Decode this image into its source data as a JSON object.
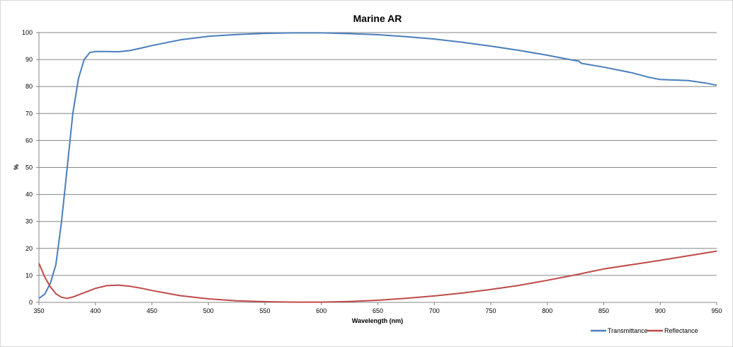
{
  "chart_data": {
    "type": "line",
    "title": "Marine AR",
    "xlabel": "Wavelength (nm)",
    "ylabel": "%",
    "xlim": [
      350,
      950
    ],
    "ylim": [
      0,
      100
    ],
    "x_ticks": [
      350,
      400,
      450,
      500,
      550,
      600,
      650,
      700,
      750,
      800,
      850,
      900,
      950
    ],
    "y_ticks": [
      0,
      10,
      20,
      30,
      40,
      50,
      60,
      70,
      80,
      90,
      100
    ],
    "grid": "horizontal",
    "legend_position": "bottom-right",
    "series": [
      {
        "name": "Transmittance",
        "color": "#4a7ebb",
        "points": [
          [
            350,
            1.5
          ],
          [
            355,
            3
          ],
          [
            360,
            7
          ],
          [
            365,
            14
          ],
          [
            370,
            30
          ],
          [
            375,
            50
          ],
          [
            380,
            70
          ],
          [
            385,
            83
          ],
          [
            390,
            90
          ],
          [
            395,
            92.6
          ],
          [
            400,
            93
          ],
          [
            410,
            93
          ],
          [
            420,
            92.9
          ],
          [
            430,
            93.3
          ],
          [
            440,
            94.2
          ],
          [
            450,
            95.2
          ],
          [
            475,
            97.3
          ],
          [
            500,
            98.6
          ],
          [
            525,
            99.3
          ],
          [
            550,
            99.7
          ],
          [
            575,
            99.9
          ],
          [
            600,
            99.9
          ],
          [
            625,
            99.6
          ],
          [
            650,
            99.2
          ],
          [
            675,
            98.5
          ],
          [
            700,
            97.6
          ],
          [
            725,
            96.4
          ],
          [
            750,
            95
          ],
          [
            775,
            93.4
          ],
          [
            800,
            91.6
          ],
          [
            820,
            90
          ],
          [
            828,
            89.4
          ],
          [
            830,
            88.6
          ],
          [
            850,
            87.2
          ],
          [
            875,
            85.1
          ],
          [
            890,
            83.4
          ],
          [
            900,
            82.6
          ],
          [
            925,
            82.2
          ],
          [
            940,
            81.3
          ],
          [
            950,
            80.5
          ]
        ]
      },
      {
        "name": "Reflectance",
        "color": "#be4b48",
        "points": [
          [
            350,
            14.5
          ],
          [
            355,
            9.5
          ],
          [
            360,
            5.8
          ],
          [
            365,
            3.2
          ],
          [
            370,
            1.9
          ],
          [
            375,
            1.5
          ],
          [
            380,
            2
          ],
          [
            390,
            3.6
          ],
          [
            400,
            5.2
          ],
          [
            410,
            6.2
          ],
          [
            420,
            6.4
          ],
          [
            430,
            6
          ],
          [
            440,
            5.3
          ],
          [
            450,
            4.4
          ],
          [
            475,
            2.5
          ],
          [
            500,
            1.3
          ],
          [
            525,
            0.6
          ],
          [
            550,
            0.25
          ],
          [
            575,
            0.1
          ],
          [
            600,
            0.1
          ],
          [
            625,
            0.35
          ],
          [
            650,
            0.8
          ],
          [
            675,
            1.5
          ],
          [
            700,
            2.4
          ],
          [
            725,
            3.5
          ],
          [
            750,
            4.8
          ],
          [
            775,
            6.3
          ],
          [
            800,
            8.2
          ],
          [
            825,
            10.2
          ],
          [
            850,
            12.4
          ],
          [
            875,
            14
          ],
          [
            900,
            15.6
          ],
          [
            925,
            17.3
          ],
          [
            950,
            19
          ]
        ]
      }
    ]
  }
}
